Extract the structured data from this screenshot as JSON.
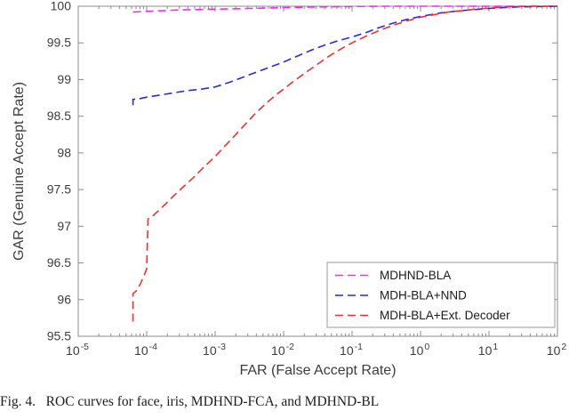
{
  "chart_data": {
    "type": "line",
    "title": "",
    "xlabel": "FAR (False Accept Rate)",
    "ylabel": "GAR (Genuine Accept Rate)",
    "x_scale": "log10",
    "xlim_log": [
      -5,
      2
    ],
    "ylim": [
      95.5,
      100
    ],
    "x_ticks_exponents": [
      -5,
      -4,
      -3,
      -2,
      -1,
      0,
      1,
      2
    ],
    "y_ticks": [
      "95.5",
      "96",
      "96.5",
      "97",
      "97.5",
      "98",
      "98.5",
      "99",
      "99.5",
      "100"
    ],
    "y_tick_values": [
      95.5,
      96,
      96.5,
      97,
      97.5,
      98,
      98.5,
      99,
      99.5,
      100
    ],
    "grid": false,
    "legend_position": "lower right",
    "axis_color": "#8c8c8c",
    "text_color": "#3c3c3c",
    "series": [
      {
        "name": "MDHND-BLA",
        "color": "#f32af3",
        "dash": "9 5",
        "points": [
          [
            -4.2,
            99.92
          ],
          [
            -4.0,
            99.93
          ],
          [
            -3.5,
            99.95
          ],
          [
            -3.0,
            99.96
          ],
          [
            -2.5,
            99.97
          ],
          [
            -2.0,
            99.98
          ],
          [
            -1.5,
            99.99
          ],
          [
            -1.0,
            99.995
          ],
          [
            -0.5,
            100
          ],
          [
            0,
            100
          ],
          [
            1,
            100
          ],
          [
            2,
            100
          ]
        ]
      },
      {
        "name": "MDH-BLA+NND",
        "color": "#2a2ada",
        "dash": "9 5",
        "points": [
          [
            -4.2,
            98.65
          ],
          [
            -4.2,
            98.73
          ],
          [
            -4.1,
            98.74
          ],
          [
            -4.0,
            98.76
          ],
          [
            -3.8,
            98.79
          ],
          [
            -3.6,
            98.82
          ],
          [
            -3.4,
            98.85
          ],
          [
            -3.2,
            98.87
          ],
          [
            -3.0,
            98.9
          ],
          [
            -2.8,
            98.96
          ],
          [
            -2.6,
            99.03
          ],
          [
            -2.4,
            99.1
          ],
          [
            -2.2,
            99.17
          ],
          [
            -2.0,
            99.24
          ],
          [
            -1.8,
            99.32
          ],
          [
            -1.6,
            99.4
          ],
          [
            -1.4,
            99.47
          ],
          [
            -1.2,
            99.53
          ],
          [
            -1.0,
            99.58
          ],
          [
            -0.8,
            99.64
          ],
          [
            -0.6,
            99.71
          ],
          [
            -0.4,
            99.77
          ],
          [
            -0.2,
            99.82
          ],
          [
            0,
            99.86
          ],
          [
            0.3,
            99.91
          ],
          [
            0.6,
            99.94
          ],
          [
            1.0,
            99.97
          ],
          [
            1.4,
            99.99
          ],
          [
            2,
            100
          ]
        ]
      },
      {
        "name": "MDH-BLA+Ext. Decoder",
        "color": "#ef3030",
        "dash": "9 5",
        "points": [
          [
            -4.2,
            95.7
          ],
          [
            -4.2,
            96.08
          ],
          [
            -4.15,
            96.12
          ],
          [
            -4.1,
            96.2
          ],
          [
            -4.05,
            96.3
          ],
          [
            -4.0,
            96.42
          ],
          [
            -3.98,
            97.1
          ],
          [
            -3.9,
            97.15
          ],
          [
            -3.75,
            97.28
          ],
          [
            -3.6,
            97.42
          ],
          [
            -3.45,
            97.55
          ],
          [
            -3.3,
            97.68
          ],
          [
            -3.15,
            97.82
          ],
          [
            -3.0,
            97.95
          ],
          [
            -2.85,
            98.1
          ],
          [
            -2.7,
            98.25
          ],
          [
            -2.55,
            98.4
          ],
          [
            -2.4,
            98.55
          ],
          [
            -2.25,
            98.68
          ],
          [
            -2.1,
            98.8
          ],
          [
            -2.0,
            98.87
          ],
          [
            -1.85,
            98.98
          ],
          [
            -1.7,
            99.08
          ],
          [
            -1.55,
            99.18
          ],
          [
            -1.4,
            99.28
          ],
          [
            -1.25,
            99.37
          ],
          [
            -1.1,
            99.45
          ],
          [
            -1.0,
            99.5
          ],
          [
            -0.8,
            99.59
          ],
          [
            -0.6,
            99.67
          ],
          [
            -0.4,
            99.74
          ],
          [
            -0.2,
            99.8
          ],
          [
            0,
            99.85
          ],
          [
            0.4,
            99.92
          ],
          [
            0.8,
            99.96
          ],
          [
            1.2,
            99.99
          ],
          [
            1.6,
            100
          ],
          [
            2,
            100
          ]
        ]
      }
    ]
  },
  "caption": {
    "text": "Fig. 4.   ROC curves for face, iris, MDHND-FCA, and MDHND-BL"
  }
}
